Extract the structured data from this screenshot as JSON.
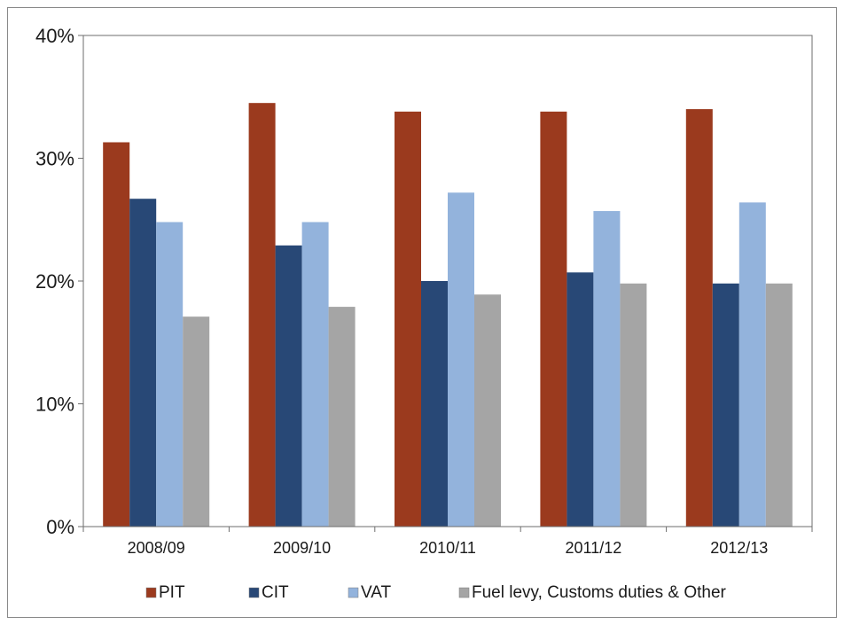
{
  "chart_data": {
    "type": "bar",
    "title": "",
    "xlabel": "",
    "ylabel": "",
    "ylim": [
      0,
      40
    ],
    "y_ticks": [
      "0%",
      "10%",
      "20%",
      "30%",
      "40%"
    ],
    "y_tick_values": [
      0,
      10,
      20,
      30,
      40
    ],
    "categories": [
      "2008/09",
      "2009/10",
      "2010/11",
      "2011/12",
      "2012/13"
    ],
    "series": [
      {
        "name": "PIT",
        "color": "#9b3a1e",
        "values": [
          31.3,
          34.5,
          33.8,
          33.8,
          34.0
        ]
      },
      {
        "name": "CIT",
        "color": "#284876",
        "values": [
          26.7,
          22.9,
          20.0,
          20.7,
          19.8
        ]
      },
      {
        "name": "VAT",
        "color": "#93b3dc",
        "values": [
          24.8,
          24.8,
          27.2,
          25.7,
          26.4
        ]
      },
      {
        "name": "Fuel levy, Customs duties & Other",
        "color": "#a5a5a5",
        "values": [
          17.1,
          17.9,
          18.9,
          19.8,
          19.8
        ]
      }
    ],
    "grid": false,
    "legend_position": "bottom"
  }
}
